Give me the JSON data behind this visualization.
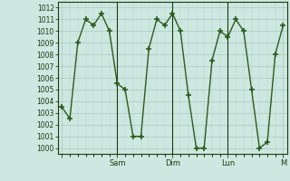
{
  "y_values": [
    1003.5,
    1002.5,
    1009,
    1011,
    1010.5,
    1011.5,
    1010,
    1005.5,
    1005,
    1001,
    1001,
    1008.5,
    1011,
    1010.5,
    1011.5,
    1010,
    1004.5,
    1000,
    1000,
    1007.5,
    1010,
    1009.5,
    1011,
    1010,
    1005,
    1000,
    1000.5,
    1008,
    1010.5
  ],
  "x_tick_positions": [
    0,
    7,
    14,
    21,
    28
  ],
  "x_tick_labels": [
    "",
    "Sam",
    "Dim",
    "Lun",
    "M"
  ],
  "ylim": [
    999.5,
    1012.5
  ],
  "yticks": [
    1000,
    1001,
    1002,
    1003,
    1004,
    1005,
    1006,
    1007,
    1008,
    1009,
    1010,
    1011,
    1012
  ],
  "line_color": "#2d5a1b",
  "marker_color": "#2d5a1b",
  "bg_color": "#cce8e0",
  "grid_color_major": "#a8c8be",
  "grid_color_minor": "#b8d8d0",
  "tick_label_color": "#1a3a10",
  "axis_color": "#1a3a10",
  "marker": "+",
  "linewidth": 1.0,
  "markersize": 4,
  "markeredgewidth": 1.2
}
